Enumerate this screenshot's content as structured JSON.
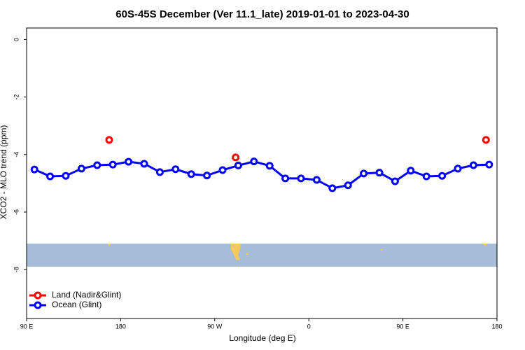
{
  "chart_data": {
    "type": "line",
    "title": "60S-45S December (Ver 11.1_late)   2019-01-01 to 2023-04-30",
    "x_label": "Longitude (deg E)",
    "y_label": "XCO2 - MLO trend (ppm)",
    "xlim": [
      90,
      540
    ],
    "ylim": [
      -9.7,
      0.4
    ],
    "xticks": [
      {
        "value": 90,
        "label": "90 E"
      },
      180,
      {
        "value": 270,
        "label": "90 W"
      },
      {
        "value": 360,
        "label": "0"
      },
      {
        "value": 450,
        "label": "90 E"
      },
      {
        "value": 540,
        "label": "180"
      }
    ],
    "yticks": [
      0,
      -2,
      -4,
      -6,
      -8
    ],
    "legend": "bottom-left",
    "series": [
      {
        "name": "Land (Nadir&Glint)",
        "color": "#ff0000",
        "lines": false,
        "x": [
          169,
          290,
          529.5
        ],
        "values": [
          -3.49,
          -4.1,
          -3.49
        ]
      },
      {
        "name": "Ocean (Glint)",
        "color": "#0000ff",
        "lines": true,
        "x": [
          97.5,
          112.5,
          127.5,
          142.5,
          157.5,
          172.5,
          187.5,
          202.5,
          217.5,
          232.5,
          247.5,
          262.5,
          277.5,
          292.5,
          307.5,
          322.5,
          337.5,
          352.5,
          367.5,
          382.5,
          397.5,
          412.5,
          427.5,
          442.5,
          457.5,
          472.5,
          487.5,
          502.5,
          517.5,
          532.5
        ],
        "values": [
          -4.52,
          -4.76,
          -4.74,
          -4.49,
          -4.37,
          -4.35,
          -4.25,
          -4.32,
          -4.61,
          -4.51,
          -4.68,
          -4.73,
          -4.54,
          -4.38,
          -4.24,
          -4.39,
          -4.83,
          -4.83,
          -4.88,
          -5.17,
          -5.07,
          -4.66,
          -4.63,
          -4.93,
          -4.56,
          -4.76,
          -4.74,
          -4.49,
          -4.37,
          -4.35
        ]
      }
    ]
  }
}
